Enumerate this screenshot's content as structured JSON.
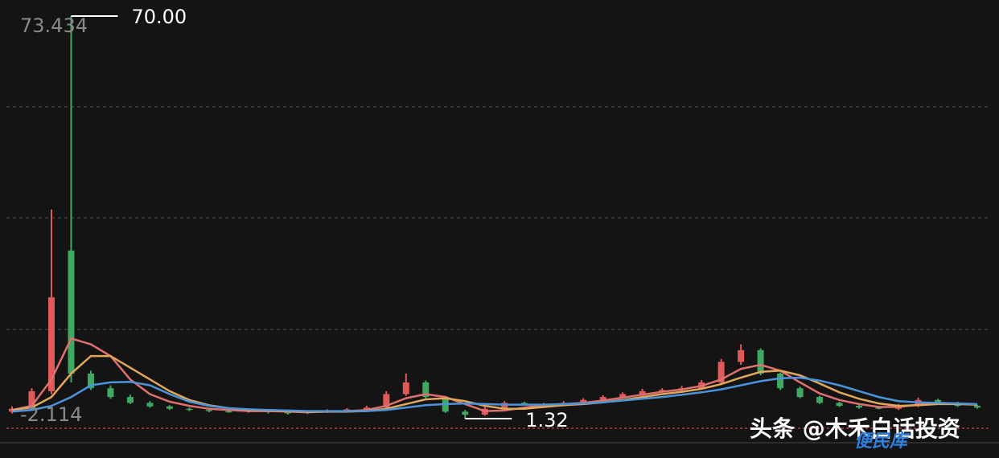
{
  "chart_data": {
    "type": "candlestick",
    "ylim": [
      -2.114,
      73.434
    ],
    "yticks": [
      73.434,
      -2.114
    ],
    "up_color": "#e05a5a",
    "down_color": "#3fa862",
    "open": [
      2.5,
      3.0,
      6.0,
      30.0,
      9.0,
      6.5,
      5.0,
      4.0,
      3.4,
      3.0,
      2.8,
      2.6,
      2.5,
      2.7,
      2.4,
      2.3,
      2.5,
      2.7,
      2.9,
      3.2,
      5.5,
      7.5,
      5.0,
      2.5,
      2.0,
      3.0,
      4.0,
      3.8,
      3.6,
      4.0,
      4.5,
      5.0,
      5.5,
      6.0,
      6.2,
      6.5,
      7.5,
      11.0,
      13.0,
      9.0,
      6.5,
      5.0,
      4.0,
      3.5,
      3.2,
      3.0,
      3.5,
      4.5,
      4.0,
      3.5
    ],
    "high": [
      3.4,
      6.5,
      37,
      70,
      9.5,
      7,
      5.4,
      4.3,
      3.6,
      3.2,
      3.0,
      2.8,
      2.9,
      2.9,
      2.6,
      2.7,
      2.9,
      3.1,
      3.5,
      6.0,
      9.0,
      7.8,
      5.2,
      2.8,
      3.3,
      4.3,
      4.2,
      4.0,
      4.3,
      4.8,
      5.3,
      5.8,
      6.4,
      6.5,
      6.9,
      7.9,
      11.5,
      14.0,
      13.3,
      9.2,
      6.8,
      5.2,
      4.2,
      3.7,
      3.4,
      3.8,
      4.9,
      4.7,
      4.2,
      3.7
    ],
    "low": [
      2.2,
      2.8,
      5.5,
      7.5,
      6.2,
      4.7,
      3.8,
      3.2,
      2.8,
      2.6,
      2.4,
      2.3,
      2.3,
      2.2,
      2.0,
      2.1,
      2.3,
      2.5,
      2.7,
      3.0,
      5.2,
      4.8,
      2.3,
      1.32,
      1.8,
      2.8,
      3.6,
      3.4,
      3.4,
      3.8,
      4.3,
      4.8,
      5.2,
      5.8,
      6.0,
      6.3,
      7.2,
      10.5,
      8.7,
      6.2,
      4.8,
      3.8,
      3.3,
      3.0,
      2.9,
      2.8,
      3.3,
      3.8,
      3.3,
      3.0
    ],
    "close": [
      3.0,
      6.0,
      22.0,
      9.0,
      6.5,
      5.0,
      4.0,
      3.4,
      3.0,
      2.8,
      2.6,
      2.5,
      2.7,
      2.4,
      2.3,
      2.5,
      2.7,
      2.9,
      3.2,
      5.5,
      7.5,
      5.0,
      2.5,
      2.0,
      3.0,
      4.0,
      3.8,
      3.6,
      4.0,
      4.5,
      5.0,
      5.5,
      6.0,
      6.2,
      6.5,
      7.5,
      11.0,
      13.0,
      9.0,
      6.5,
      5.0,
      4.0,
      3.5,
      3.2,
      3.0,
      3.5,
      4.5,
      4.0,
      3.5,
      3.2
    ],
    "series": [
      {
        "color": "#e07070",
        "values": [
          2.8,
          3.5,
          8,
          15,
          14,
          12,
          8,
          5.5,
          4.2,
          3.5,
          3.0,
          2.8,
          2.6,
          2.6,
          2.5,
          2.4,
          2.5,
          2.6,
          2.8,
          3.5,
          4.8,
          5.5,
          5.0,
          3.8,
          2.6,
          2.7,
          3.2,
          3.6,
          3.8,
          4.0,
          4.4,
          4.9,
          5.4,
          5.9,
          6.3,
          6.9,
          8.0,
          9.8,
          10.5,
          9.5,
          7.5,
          5.6,
          4.5,
          3.8,
          3.3,
          3.3,
          3.7,
          4.0,
          3.9,
          3.7
        ]
      },
      {
        "color": "#e0a75a",
        "values": [
          2.8,
          3.2,
          5,
          9,
          12,
          12,
          10,
          8,
          6,
          4.5,
          3.6,
          3.1,
          2.8,
          2.7,
          2.6,
          2.5,
          2.5,
          2.5,
          2.6,
          3.0,
          3.8,
          4.6,
          4.8,
          4.3,
          3.5,
          3.0,
          3.0,
          3.3,
          3.6,
          3.8,
          4.1,
          4.5,
          5.0,
          5.5,
          5.9,
          6.4,
          7.2,
          8.3,
          9.3,
          9.5,
          8.7,
          7.3,
          5.8,
          4.7,
          3.9,
          3.5,
          3.6,
          3.8,
          3.8,
          3.7
        ]
      },
      {
        "color": "#4b94dc",
        "values": [
          2.5,
          2.8,
          3.5,
          5,
          7,
          7.5,
          7.6,
          7.0,
          5.5,
          4.2,
          3.5,
          3.1,
          2.9,
          2.8,
          2.7,
          2.6,
          2.6,
          2.6,
          2.6,
          2.8,
          3.2,
          3.6,
          3.8,
          3.9,
          3.8,
          3.7,
          3.7,
          3.7,
          3.8,
          3.9,
          4.1,
          4.4,
          4.7,
          5.0,
          5.4,
          5.8,
          6.3,
          7.0,
          7.7,
          8.2,
          8.3,
          7.8,
          7.0,
          6.0,
          5.0,
          4.3,
          4.1,
          4.0,
          3.9,
          3.8
        ]
      }
    ],
    "high_marker": {
      "value": 70,
      "label": "70.00"
    },
    "low_marker": {
      "value": 1.32,
      "label": "1.32"
    }
  },
  "watermark": {
    "source": "头条 @木禾白话投资",
    "badge": "便民库"
  }
}
